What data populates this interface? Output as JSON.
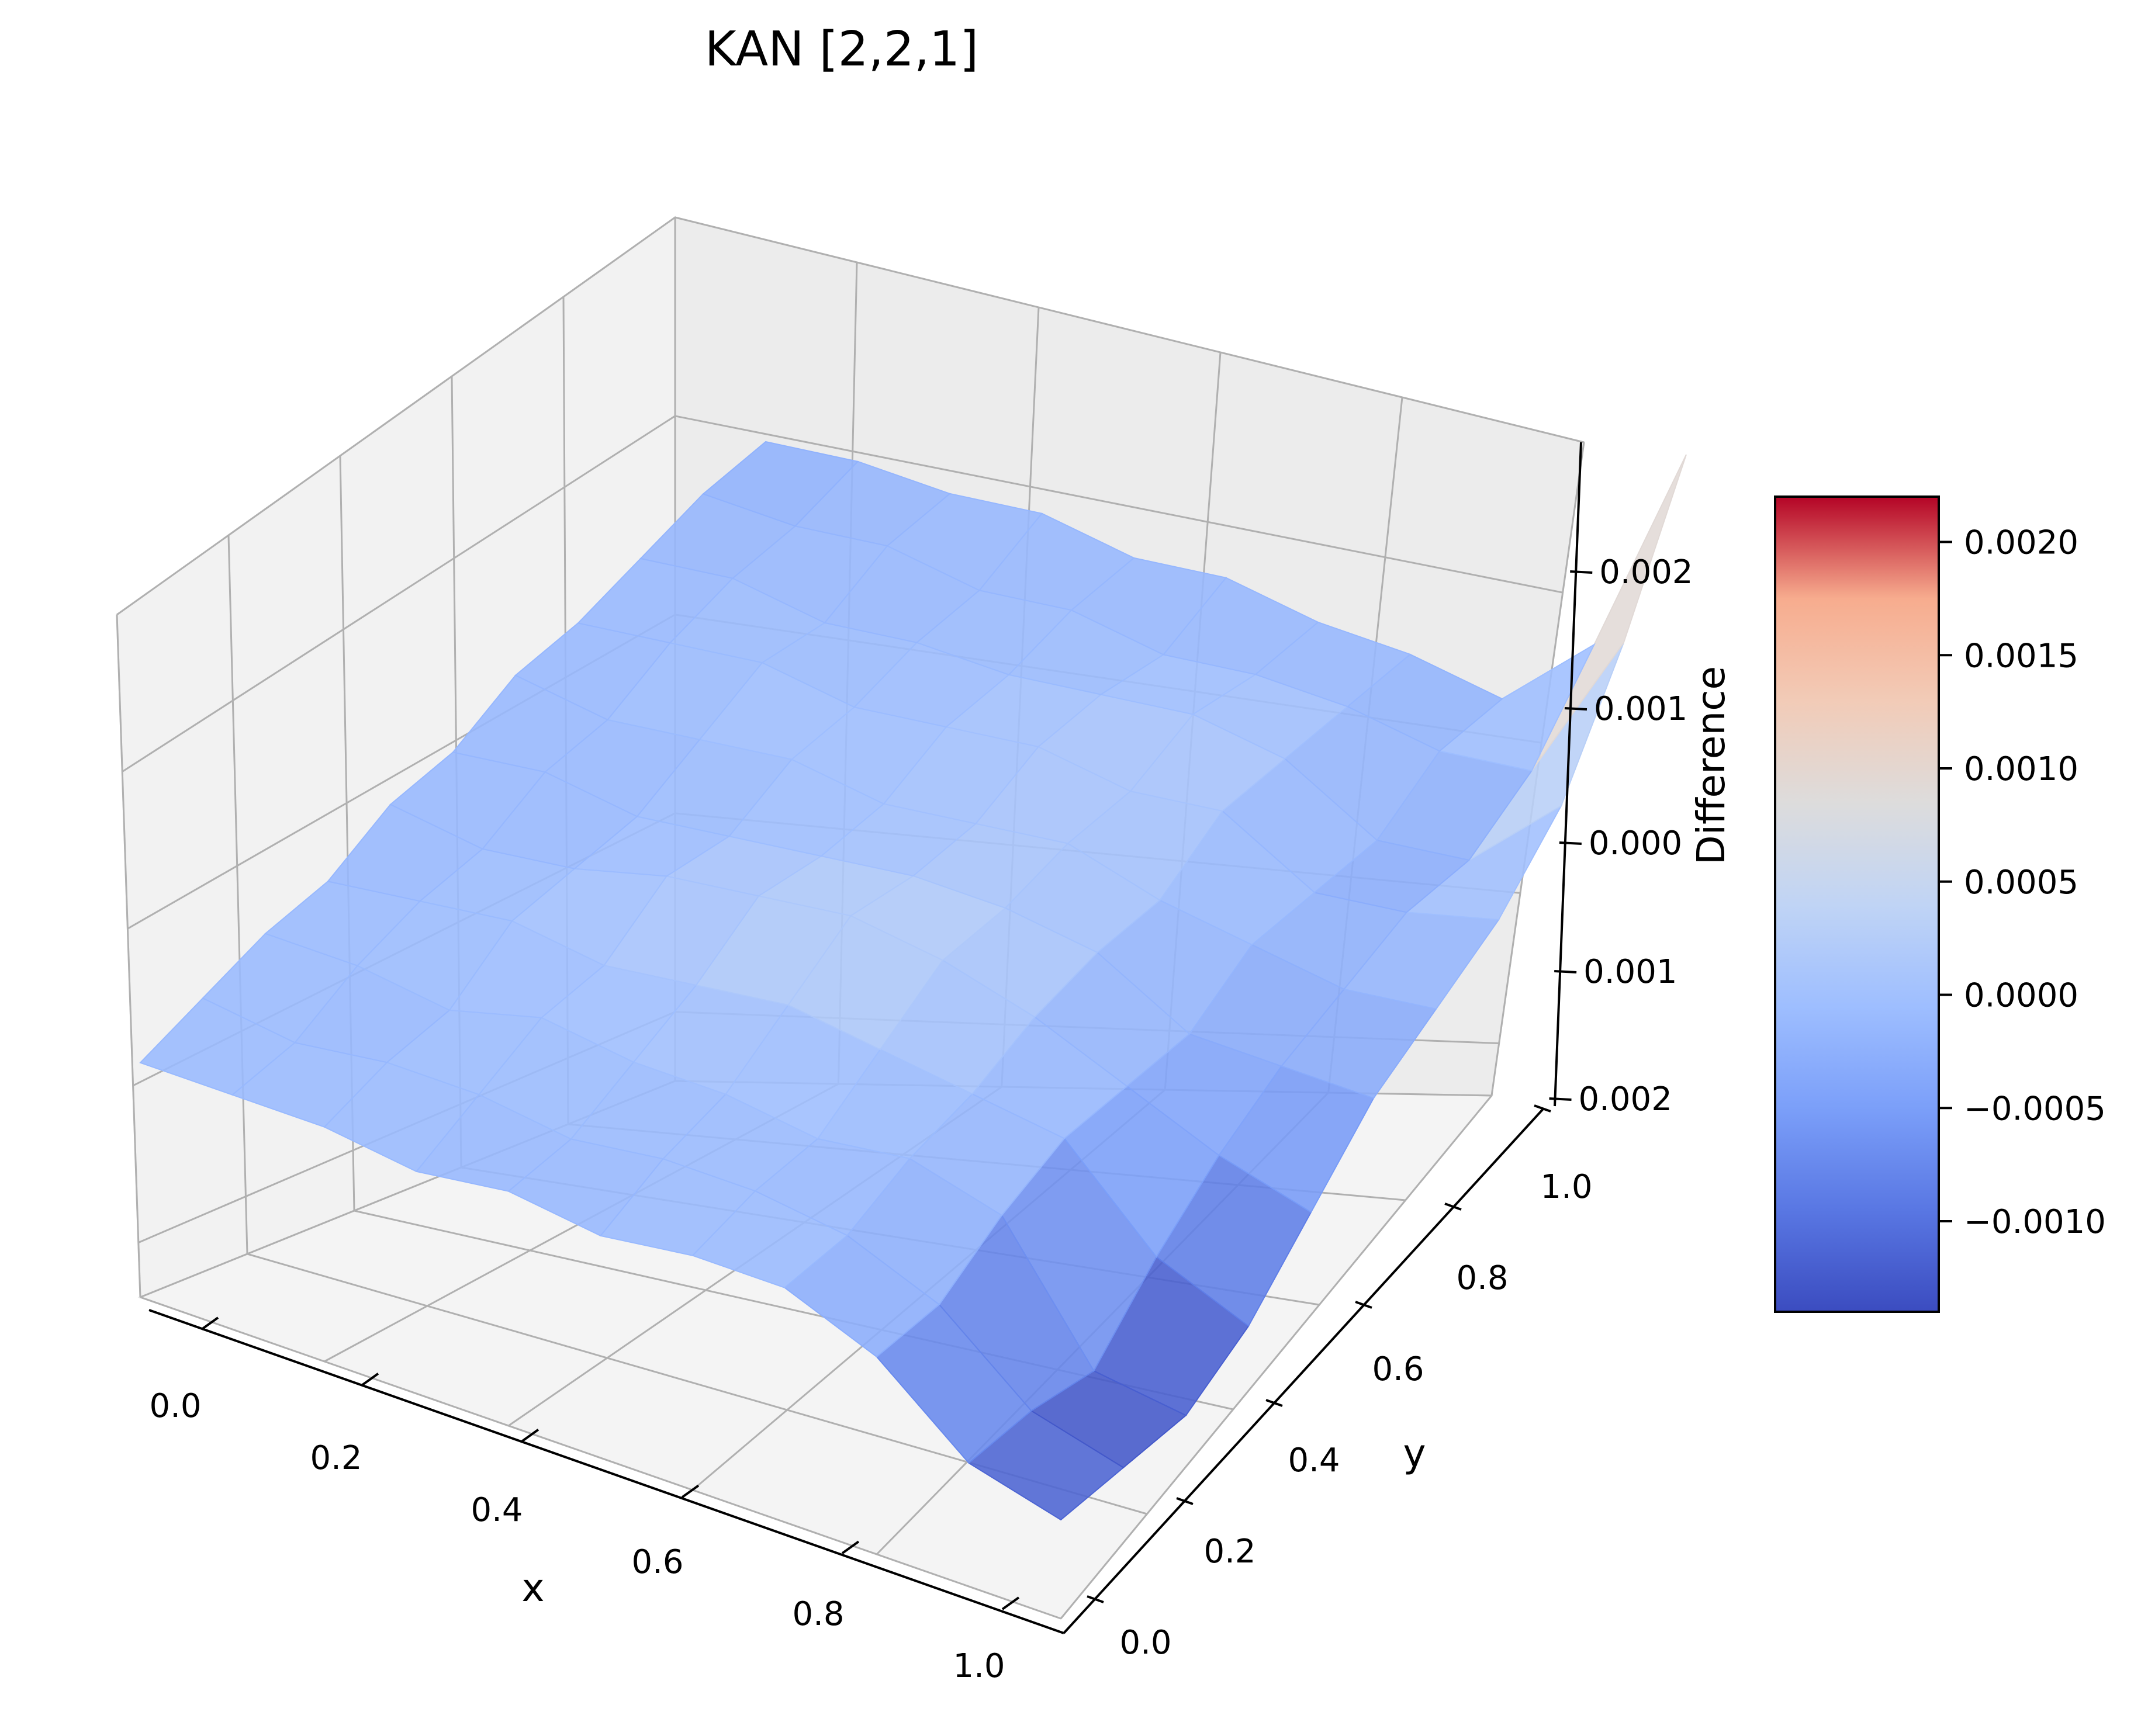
{
  "chart_data": {
    "type": "surface",
    "title": "KAN [2,2,1]",
    "xlabel": "x",
    "ylabel": "y",
    "zlabel": "Difference",
    "colormap": "coolwarm",
    "xlim": [
      0.0,
      1.0
    ],
    "ylim": [
      0.0,
      1.0
    ],
    "zlim": [
      -0.002,
      0.0023
    ],
    "x_ticks": [
      "0.0",
      "0.2",
      "0.4",
      "0.6",
      "0.8",
      "1.0"
    ],
    "y_ticks": [
      "0.0",
      "0.2",
      "0.4",
      "0.6",
      "0.8",
      "1.0"
    ],
    "z_ticks": [
      "-0.002",
      "-0.001",
      "0.000",
      "0.001",
      "0.002"
    ],
    "grid": true,
    "surface": {
      "x": [
        0.0,
        0.1,
        0.2,
        0.3,
        0.4,
        0.5,
        0.6,
        0.7,
        0.8,
        0.9,
        1.0
      ],
      "y": [
        0.0,
        0.1,
        0.2,
        0.3,
        0.4,
        0.5,
        0.6,
        0.7,
        0.8,
        0.9,
        1.0
      ],
      "z": [
        [
          -0.0001,
          -0.0001,
          -0.0001,
          -0.0002,
          -0.0001,
          -0.0002,
          -0.0001,
          -0.0002,
          -0.0002,
          -0.0002,
          -0.0003
        ],
        [
          -0.0001,
          -0.0002,
          -0.0001,
          -0.0001,
          -0.0002,
          -0.0001,
          -0.0002,
          -0.0001,
          -0.0001,
          -0.0002,
          -0.0002
        ],
        [
          -0.0001,
          -0.0001,
          -0.0002,
          0.0,
          -0.0001,
          -0.0002,
          -0.0001,
          0.0,
          -0.0002,
          -0.0001,
          -0.0002
        ],
        [
          -0.0002,
          -0.0001,
          0.0,
          -0.0001,
          0.0001,
          -0.0001,
          0.0,
          -0.0001,
          -0.0001,
          -0.0002,
          -0.0001
        ],
        [
          -0.0001,
          -0.0002,
          -0.0001,
          0.0,
          0.0002,
          0.0,
          -0.0001,
          0.0,
          -0.0001,
          -0.0001,
          -0.0002
        ],
        [
          -0.0002,
          -0.0001,
          -0.0001,
          0.0001,
          0.0003,
          0.0001,
          0.0,
          0.0001,
          0.0,
          -0.0002,
          -0.0001
        ],
        [
          -0.0001,
          -0.0001,
          -0.0002,
          0.0,
          0.0002,
          0.0001,
          0.0001,
          0.0,
          0.0001,
          -0.0001,
          -0.0002
        ],
        [
          -0.0001,
          -0.0002,
          -0.0001,
          -0.0001,
          0.0,
          0.0,
          -0.0001,
          0.0001,
          0.0,
          -0.0001,
          -0.0002
        ],
        [
          -0.0004,
          -0.0005,
          -0.0003,
          -0.0002,
          -0.0003,
          -0.0004,
          -0.0002,
          -0.0003,
          -0.0004,
          -0.0002,
          -0.0003
        ],
        [
          -0.001,
          -0.0011,
          -0.0013,
          -0.0009,
          -0.0006,
          -0.0004,
          -0.0003,
          -0.0002,
          -0.0003,
          -0.0001,
          0.0004
        ],
        [
          -0.0012,
          -0.0013,
          -0.0014,
          -0.0012,
          -0.0008,
          -0.0004,
          -0.0002,
          0.0,
          0.0004,
          0.0012,
          0.0022
        ]
      ]
    },
    "colorbar": {
      "vmin": -0.0014,
      "vmax": 0.0022,
      "ticks": [
        {
          "value": 0.002,
          "label": "0.0020"
        },
        {
          "value": 0.0015,
          "label": "0.0015"
        },
        {
          "value": 0.001,
          "label": "0.0010"
        },
        {
          "value": 0.0005,
          "label": "0.0005"
        },
        {
          "value": 0.0,
          "label": "0.0000"
        },
        {
          "value": -0.0005,
          "label": "−0.0005"
        },
        {
          "value": -0.001,
          "label": "−0.0010"
        }
      ]
    }
  }
}
